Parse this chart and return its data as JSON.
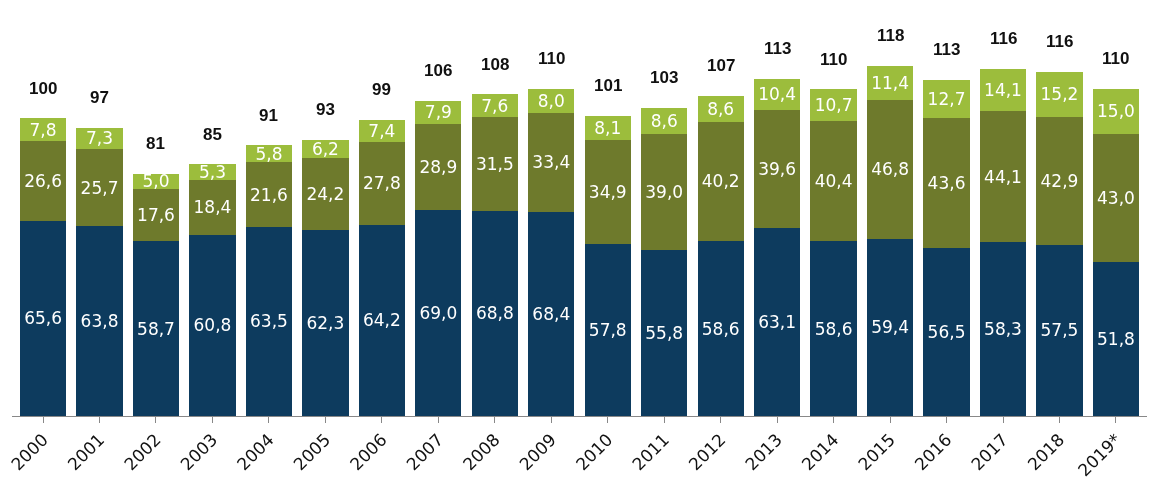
{
  "chart_data": {
    "type": "bar",
    "stacked": true,
    "categories": [
      "2000",
      "2001",
      "2002",
      "2003",
      "2004",
      "2005",
      "2006",
      "2007",
      "2008",
      "2009",
      "2010",
      "2011",
      "2012",
      "2013",
      "2014",
      "2015",
      "2016",
      "2017",
      "2018",
      "2019*"
    ],
    "series": [
      {
        "color": "#0d3b5e",
        "values": [
          65.6,
          63.8,
          58.7,
          60.8,
          63.5,
          62.3,
          64.2,
          69.0,
          68.8,
          68.4,
          57.8,
          55.8,
          58.6,
          63.1,
          58.6,
          59.4,
          56.5,
          58.3,
          57.5,
          51.8
        ],
        "value_labels": [
          "65,6",
          "63,8",
          "58,7",
          "60,8",
          "63,5",
          "62,3",
          "64,2",
          "69,0",
          "68,8",
          "68,4",
          "57,8",
          "55,8",
          "58,6",
          "63,1",
          "58,6",
          "59,4",
          "56,5",
          "58,3",
          "57,5",
          "51,8"
        ]
      },
      {
        "color": "#6e7a2c",
        "values": [
          26.6,
          25.7,
          17.6,
          18.4,
          21.6,
          24.2,
          27.8,
          28.9,
          31.5,
          33.4,
          34.9,
          39.0,
          40.2,
          39.6,
          40.4,
          46.8,
          43.6,
          44.1,
          42.9,
          43.0
        ],
        "value_labels": [
          "26,6",
          "25,7",
          "17,6",
          "18,4",
          "21,6",
          "24,2",
          "27,8",
          "28,9",
          "31,5",
          "33,4",
          "34,9",
          "39,0",
          "40,2",
          "39,6",
          "40,4",
          "46,8",
          "43,6",
          "44,1",
          "42,9",
          "43,0"
        ]
      },
      {
        "color": "#9cbd3c",
        "values": [
          7.8,
          7.3,
          5.0,
          5.3,
          5.8,
          6.2,
          7.4,
          7.9,
          7.6,
          8.0,
          8.1,
          8.6,
          8.6,
          10.4,
          10.7,
          11.4,
          12.7,
          14.1,
          15.2,
          15.0
        ],
        "value_labels": [
          "7,8",
          "7,3",
          "5,0",
          "5,3",
          "5,8",
          "6,2",
          "7,4",
          "7,9",
          "7,6",
          "8,0",
          "8,1",
          "8,6",
          "8,6",
          "10,4",
          "10,7",
          "11,4",
          "12,7",
          "14,1",
          "15,2",
          "15,0"
        ]
      }
    ],
    "totals": [
      "100",
      "97",
      "81",
      "85",
      "91",
      "93",
      "99",
      "106",
      "108",
      "110",
      "101",
      "103",
      "107",
      "113",
      "110",
      "118",
      "113",
      "116",
      "116",
      "110"
    ],
    "grid": false
  }
}
